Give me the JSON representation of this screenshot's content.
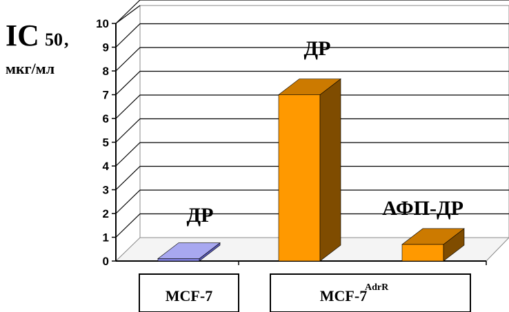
{
  "chart_data": {
    "type": "bar",
    "style": "3d-column",
    "y_label": {
      "main": "IC",
      "subscript": "50",
      "suffix": ",",
      "unit": "мкг/мл"
    },
    "ylim": [
      0,
      10
    ],
    "y_ticks": [
      "0",
      "1",
      "2",
      "3",
      "4",
      "5",
      "6",
      "7",
      "8",
      "9",
      "10"
    ],
    "grid": true,
    "bars": [
      {
        "label": "ДР",
        "value": 0.1,
        "group": "MCF-7",
        "color": "#8080e0",
        "side_color": "#5a5ab8",
        "top_color": "#a8a8f0"
      },
      {
        "label": "ДР",
        "value": 7.0,
        "group": "MCF-7 AdrR",
        "color": "#ff9900",
        "side_color": "#7f4c00",
        "top_color": "#cc7a00"
      },
      {
        "label": "АФП-ДР",
        "value": 0.7,
        "group": "MCF-7 AdrR",
        "color": "#ff9900",
        "side_color": "#7f4c00",
        "top_color": "#cc7a00"
      }
    ],
    "groups": [
      {
        "label": "MCF-7",
        "superscript": ""
      },
      {
        "label": "MCF-7",
        "superscript": "AdrR"
      }
    ]
  }
}
